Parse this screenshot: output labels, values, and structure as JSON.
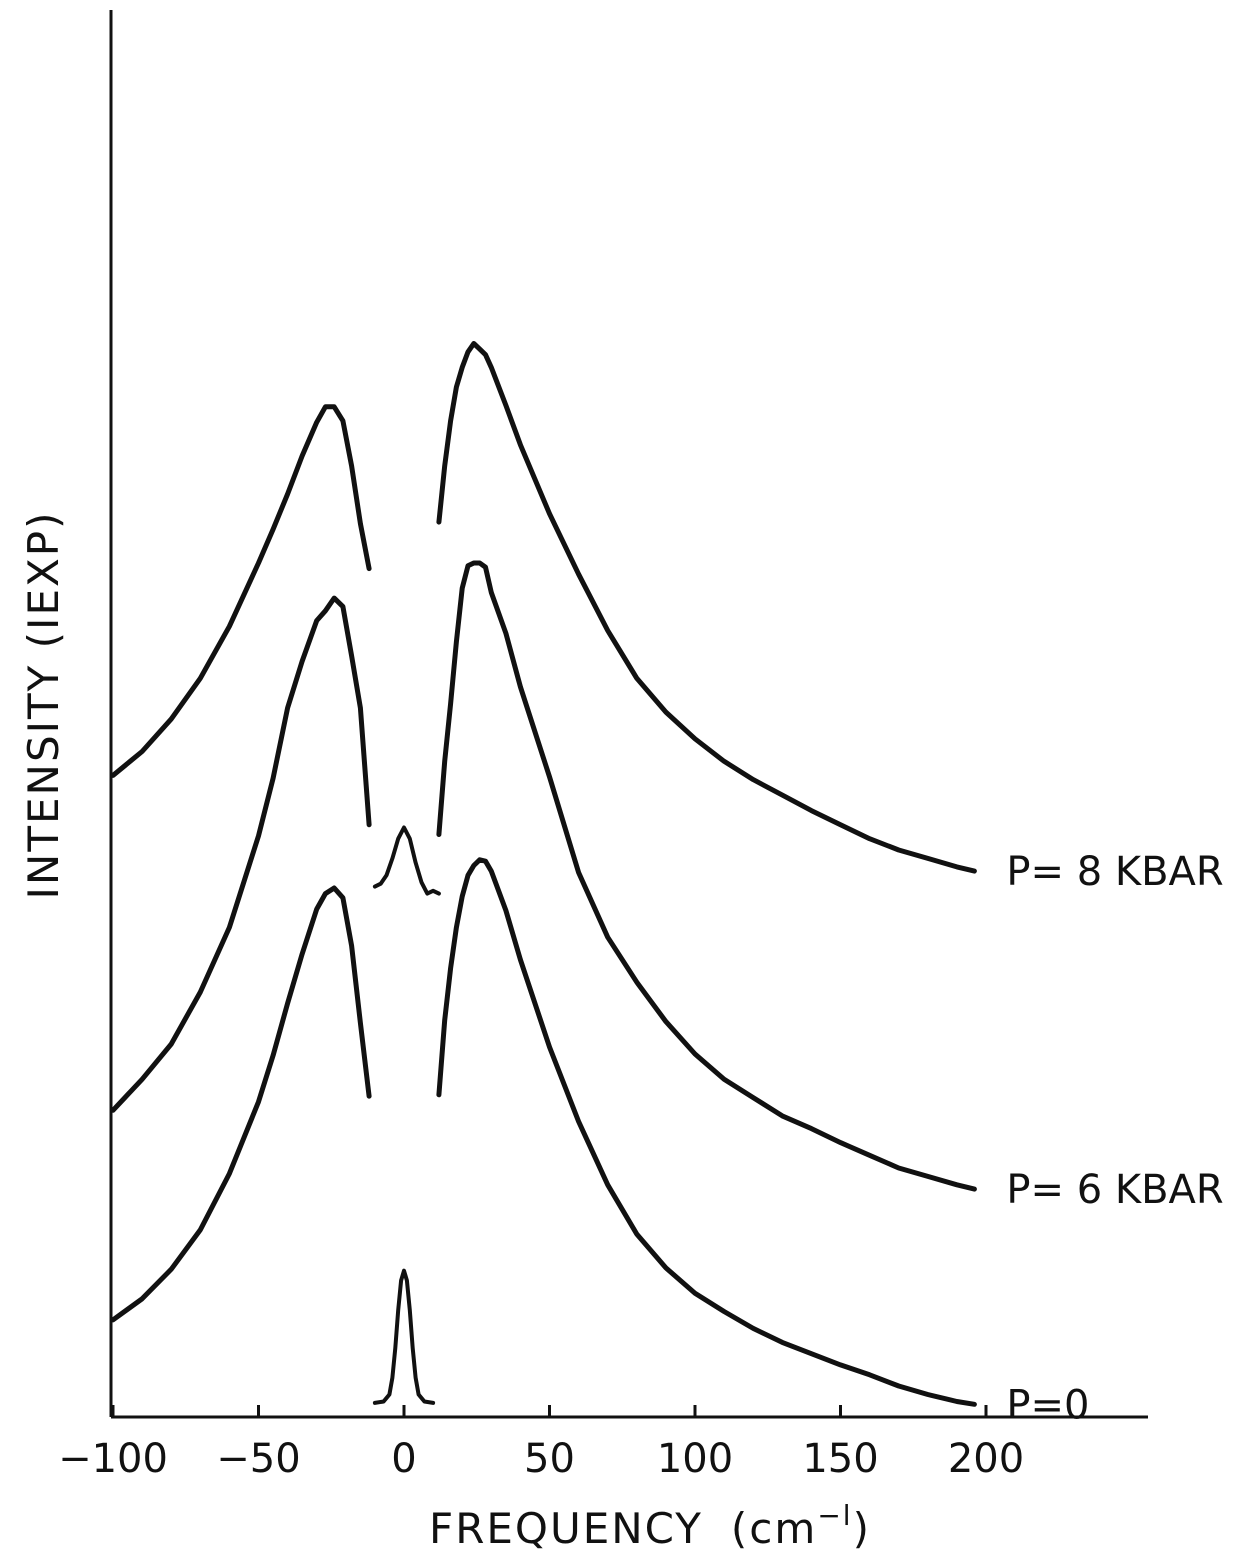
{
  "chart_data": {
    "type": "line",
    "title": "",
    "xlabel": "FREQUENCY",
    "xlabel_unit_prefix": "(cm",
    "xlabel_unit_exp": "−l",
    "xlabel_unit_suffix": ")",
    "ylabel": "INTENSITY (IEXP)",
    "xlim": [
      -100,
      250
    ],
    "ylim": [
      0,
      100
    ],
    "x_ticks": [
      -100,
      -50,
      0,
      50,
      100,
      150,
      200
    ],
    "x_tick_labels": [
      "−100",
      "−50",
      "0",
      "50",
      "100",
      "150",
      "200"
    ],
    "grid": false,
    "legend": "none",
    "series": [
      {
        "name": "P=8 KBAR",
        "label": "P= 8 KBAR",
        "x": [
          -100,
          -90,
          -80,
          -70,
          -60,
          -50,
          -45,
          -40,
          -35,
          -30,
          -27,
          -24,
          -21,
          -18,
          -15,
          -12,
          null,
          12,
          14,
          16,
          18,
          20,
          22,
          24,
          26,
          28,
          30,
          35,
          40,
          50,
          60,
          70,
          80,
          90,
          100,
          110,
          120,
          130,
          140,
          150,
          160,
          170,
          180,
          190,
          196
        ],
        "y": [
          45.6,
          47.3,
          49.6,
          52.5,
          56.2,
          60.7,
          63.1,
          65.6,
          68.3,
          70.7,
          71.8,
          71.8,
          70.8,
          67.6,
          63.5,
          60.3,
          null,
          63.6,
          67.6,
          70.8,
          73.2,
          74.6,
          75.7,
          76.3,
          75.9,
          75.5,
          74.6,
          71.9,
          69.1,
          64.2,
          59.9,
          55.9,
          52.5,
          50.1,
          48.2,
          46.6,
          45.3,
          44.2,
          43.1,
          42.1,
          41.1,
          40.3,
          39.7,
          39.1,
          38.8
        ]
      },
      {
        "name": "P=6 KBAR",
        "label": "P= 6 KBAR",
        "x": [
          -100,
          -90,
          -80,
          -70,
          -60,
          -50,
          -45,
          -40,
          -35,
          -30,
          -27,
          -24,
          -21,
          -18,
          -15,
          -12,
          null,
          12,
          14,
          16,
          18,
          20,
          22,
          24,
          26,
          28,
          30,
          35,
          40,
          50,
          60,
          70,
          80,
          90,
          100,
          110,
          120,
          130,
          140,
          150,
          160,
          170,
          180,
          190,
          196
        ],
        "y": [
          21.8,
          24.0,
          26.5,
          30.2,
          34.8,
          41.3,
          45.4,
          50.4,
          53.7,
          56.6,
          57.3,
          58.2,
          57.6,
          54.1,
          50.4,
          42.1,
          null,
          41.4,
          46.6,
          50.7,
          55.1,
          58.9,
          60.5,
          60.7,
          60.7,
          60.4,
          58.6,
          55.7,
          51.9,
          45.5,
          38.7,
          34.1,
          30.9,
          28.1,
          25.8,
          24.0,
          22.7,
          21.4,
          20.5,
          19.5,
          18.6,
          17.7,
          17.1,
          16.5,
          16.2
        ]
      },
      {
        "name": "P=0",
        "label": "P=0",
        "x": [
          -100,
          -90,
          -80,
          -70,
          -60,
          -50,
          -45,
          -40,
          -35,
          -30,
          -27,
          -24,
          -21,
          -18,
          -15,
          -12,
          null,
          12,
          14,
          16,
          18,
          20,
          22,
          24,
          26,
          28,
          30,
          35,
          40,
          50,
          60,
          70,
          80,
          90,
          100,
          110,
          120,
          130,
          140,
          150,
          160,
          170,
          180,
          190,
          196
        ],
        "y": [
          6.9,
          8.4,
          10.5,
          13.3,
          17.3,
          22.4,
          25.7,
          29.4,
          32.9,
          36.1,
          37.2,
          37.6,
          36.9,
          33.5,
          28.0,
          22.8,
          null,
          22.9,
          28.2,
          31.9,
          34.8,
          37.0,
          38.5,
          39.2,
          39.6,
          39.5,
          38.8,
          36.0,
          32.5,
          26.3,
          21.0,
          16.5,
          13.0,
          10.6,
          8.8,
          7.5,
          6.3,
          5.3,
          4.5,
          3.7,
          3.0,
          2.2,
          1.6,
          1.1,
          0.9
        ]
      },
      {
        "name": "",
        "x": [
          -10,
          -8,
          -6,
          -4,
          -2,
          0,
          2,
          4,
          6,
          8,
          10,
          12
        ],
        "y": [
          37.7,
          37.9,
          38.5,
          39.7,
          41.1,
          41.9,
          41.1,
          39.4,
          38.0,
          37.2,
          37.4,
          37.2
        ]
      },
      {
        "name": "",
        "x": [
          -10,
          -7,
          -5,
          -4,
          -3,
          -2,
          -1,
          0,
          1,
          2,
          3,
          4,
          5,
          7,
          10
        ],
        "y": [
          1.0,
          1.1,
          1.6,
          2.8,
          4.9,
          7.6,
          9.7,
          10.4,
          9.7,
          7.6,
          4.9,
          2.8,
          1.6,
          1.1,
          1.0
        ]
      }
    ]
  }
}
